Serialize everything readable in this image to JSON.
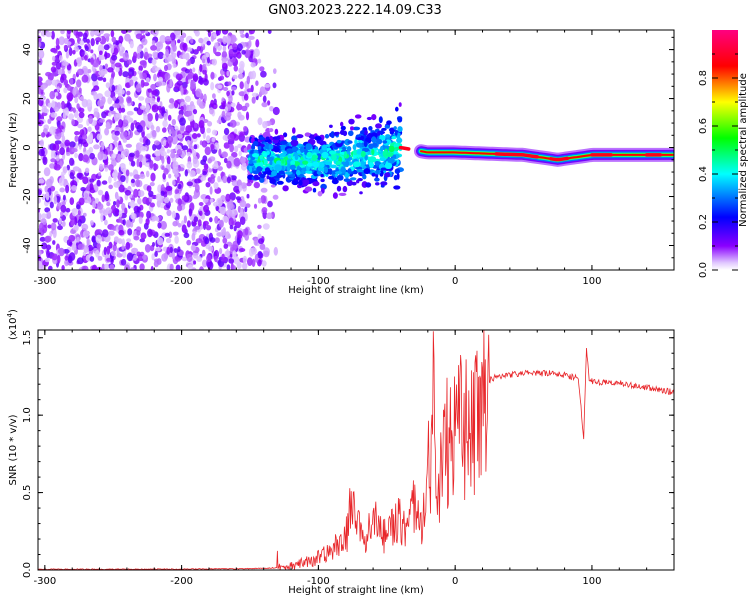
{
  "title": "GN03.2023.222.14.09.C33",
  "chart_data": [
    {
      "type": "heatmap",
      "xlabel": "Height of straight line (km)",
      "ylabel": "Frequency (Hz)",
      "xlim": [
        -305,
        160
      ],
      "ylim": [
        -50,
        48
      ],
      "xticks": [
        -300,
        -200,
        -100,
        0,
        100
      ],
      "yticks": [
        -40,
        -20,
        0,
        20,
        40
      ],
      "colorbar": {
        "label": "Normalized spectral amplitude",
        "range": [
          0,
          1
        ],
        "ticks": [
          "0.0",
          "0.2",
          "0.4",
          "0.6",
          "0.8"
        ],
        "colors": [
          "#ffffff",
          "#8a00ff",
          "#0000ff",
          "#00ffff",
          "#00ff00",
          "#ffff00",
          "#ff0000",
          "#ff0080"
        ]
      },
      "regions": [
        {
          "x": [
            -305,
            -130
          ],
          "freq": [
            -50,
            48
          ],
          "amplitude": 0.12,
          "pattern": "scattered noise"
        },
        {
          "x": [
            -150,
            -40
          ],
          "freq": [
            -14,
            6
          ],
          "amplitude": 0.35,
          "pattern": "broad band"
        },
        {
          "x": [
            -40,
            160
          ],
          "freq": [
            -3,
            2
          ],
          "amplitude": 0.85,
          "pattern": "narrow band near 0 Hz"
        }
      ],
      "band_center_hz": [
        [
          -150,
          -5
        ],
        [
          -100,
          -6
        ],
        [
          -60,
          -3
        ],
        [
          -40,
          0
        ],
        [
          -20,
          -2
        ],
        [
          0,
          -2
        ],
        [
          50,
          -3
        ],
        [
          75,
          -5
        ],
        [
          100,
          -3
        ],
        [
          160,
          -3
        ]
      ]
    },
    {
      "type": "line",
      "xlabel": "Height of straight line (km)",
      "ylabel": "SNR (10 * v/v)",
      "yscale_label": "(x10",
      "yscale_exp": "4",
      "yscale_suffix": ")",
      "xlim": [
        -305,
        160
      ],
      "ylim": [
        0,
        1.55
      ],
      "xticks": [
        -300,
        -200,
        -100,
        0,
        100
      ],
      "yticks": [
        "0.0",
        "0.5",
        "1.0",
        "1.5"
      ],
      "series": [
        {
          "color": "#e8262a",
          "x": [
            -305,
            -250,
            -200,
            -150,
            -130,
            -120,
            -110,
            -100,
            -90,
            -80,
            -76,
            -72,
            -65,
            -60,
            -55,
            -50,
            -45,
            -40,
            -35,
            -30,
            -26,
            -22,
            -20,
            -18,
            -16,
            -14,
            -12,
            -10,
            -6,
            -2,
            0,
            5,
            10,
            15,
            20,
            30,
            40,
            50,
            60,
            70,
            80,
            90,
            94,
            96,
            98,
            100,
            110,
            120,
            130,
            140,
            150,
            160
          ],
          "y": [
            0.005,
            0.005,
            0.006,
            0.008,
            0.015,
            0.03,
            0.06,
            0.09,
            0.14,
            0.22,
            0.55,
            0.3,
            0.28,
            0.33,
            0.3,
            0.25,
            0.32,
            0.35,
            0.28,
            0.45,
            0.3,
            0.5,
            0.7,
            0.75,
            1.55,
            0.5,
            0.6,
            0.85,
            0.9,
            0.95,
            0.95,
            1.05,
            1.0,
            1.1,
            1.2,
            1.25,
            1.26,
            1.27,
            1.27,
            1.27,
            1.26,
            1.24,
            0.85,
            1.45,
            1.24,
            1.22,
            1.21,
            1.21,
            1.19,
            1.18,
            1.16,
            1.15
          ]
        }
      ]
    }
  ]
}
